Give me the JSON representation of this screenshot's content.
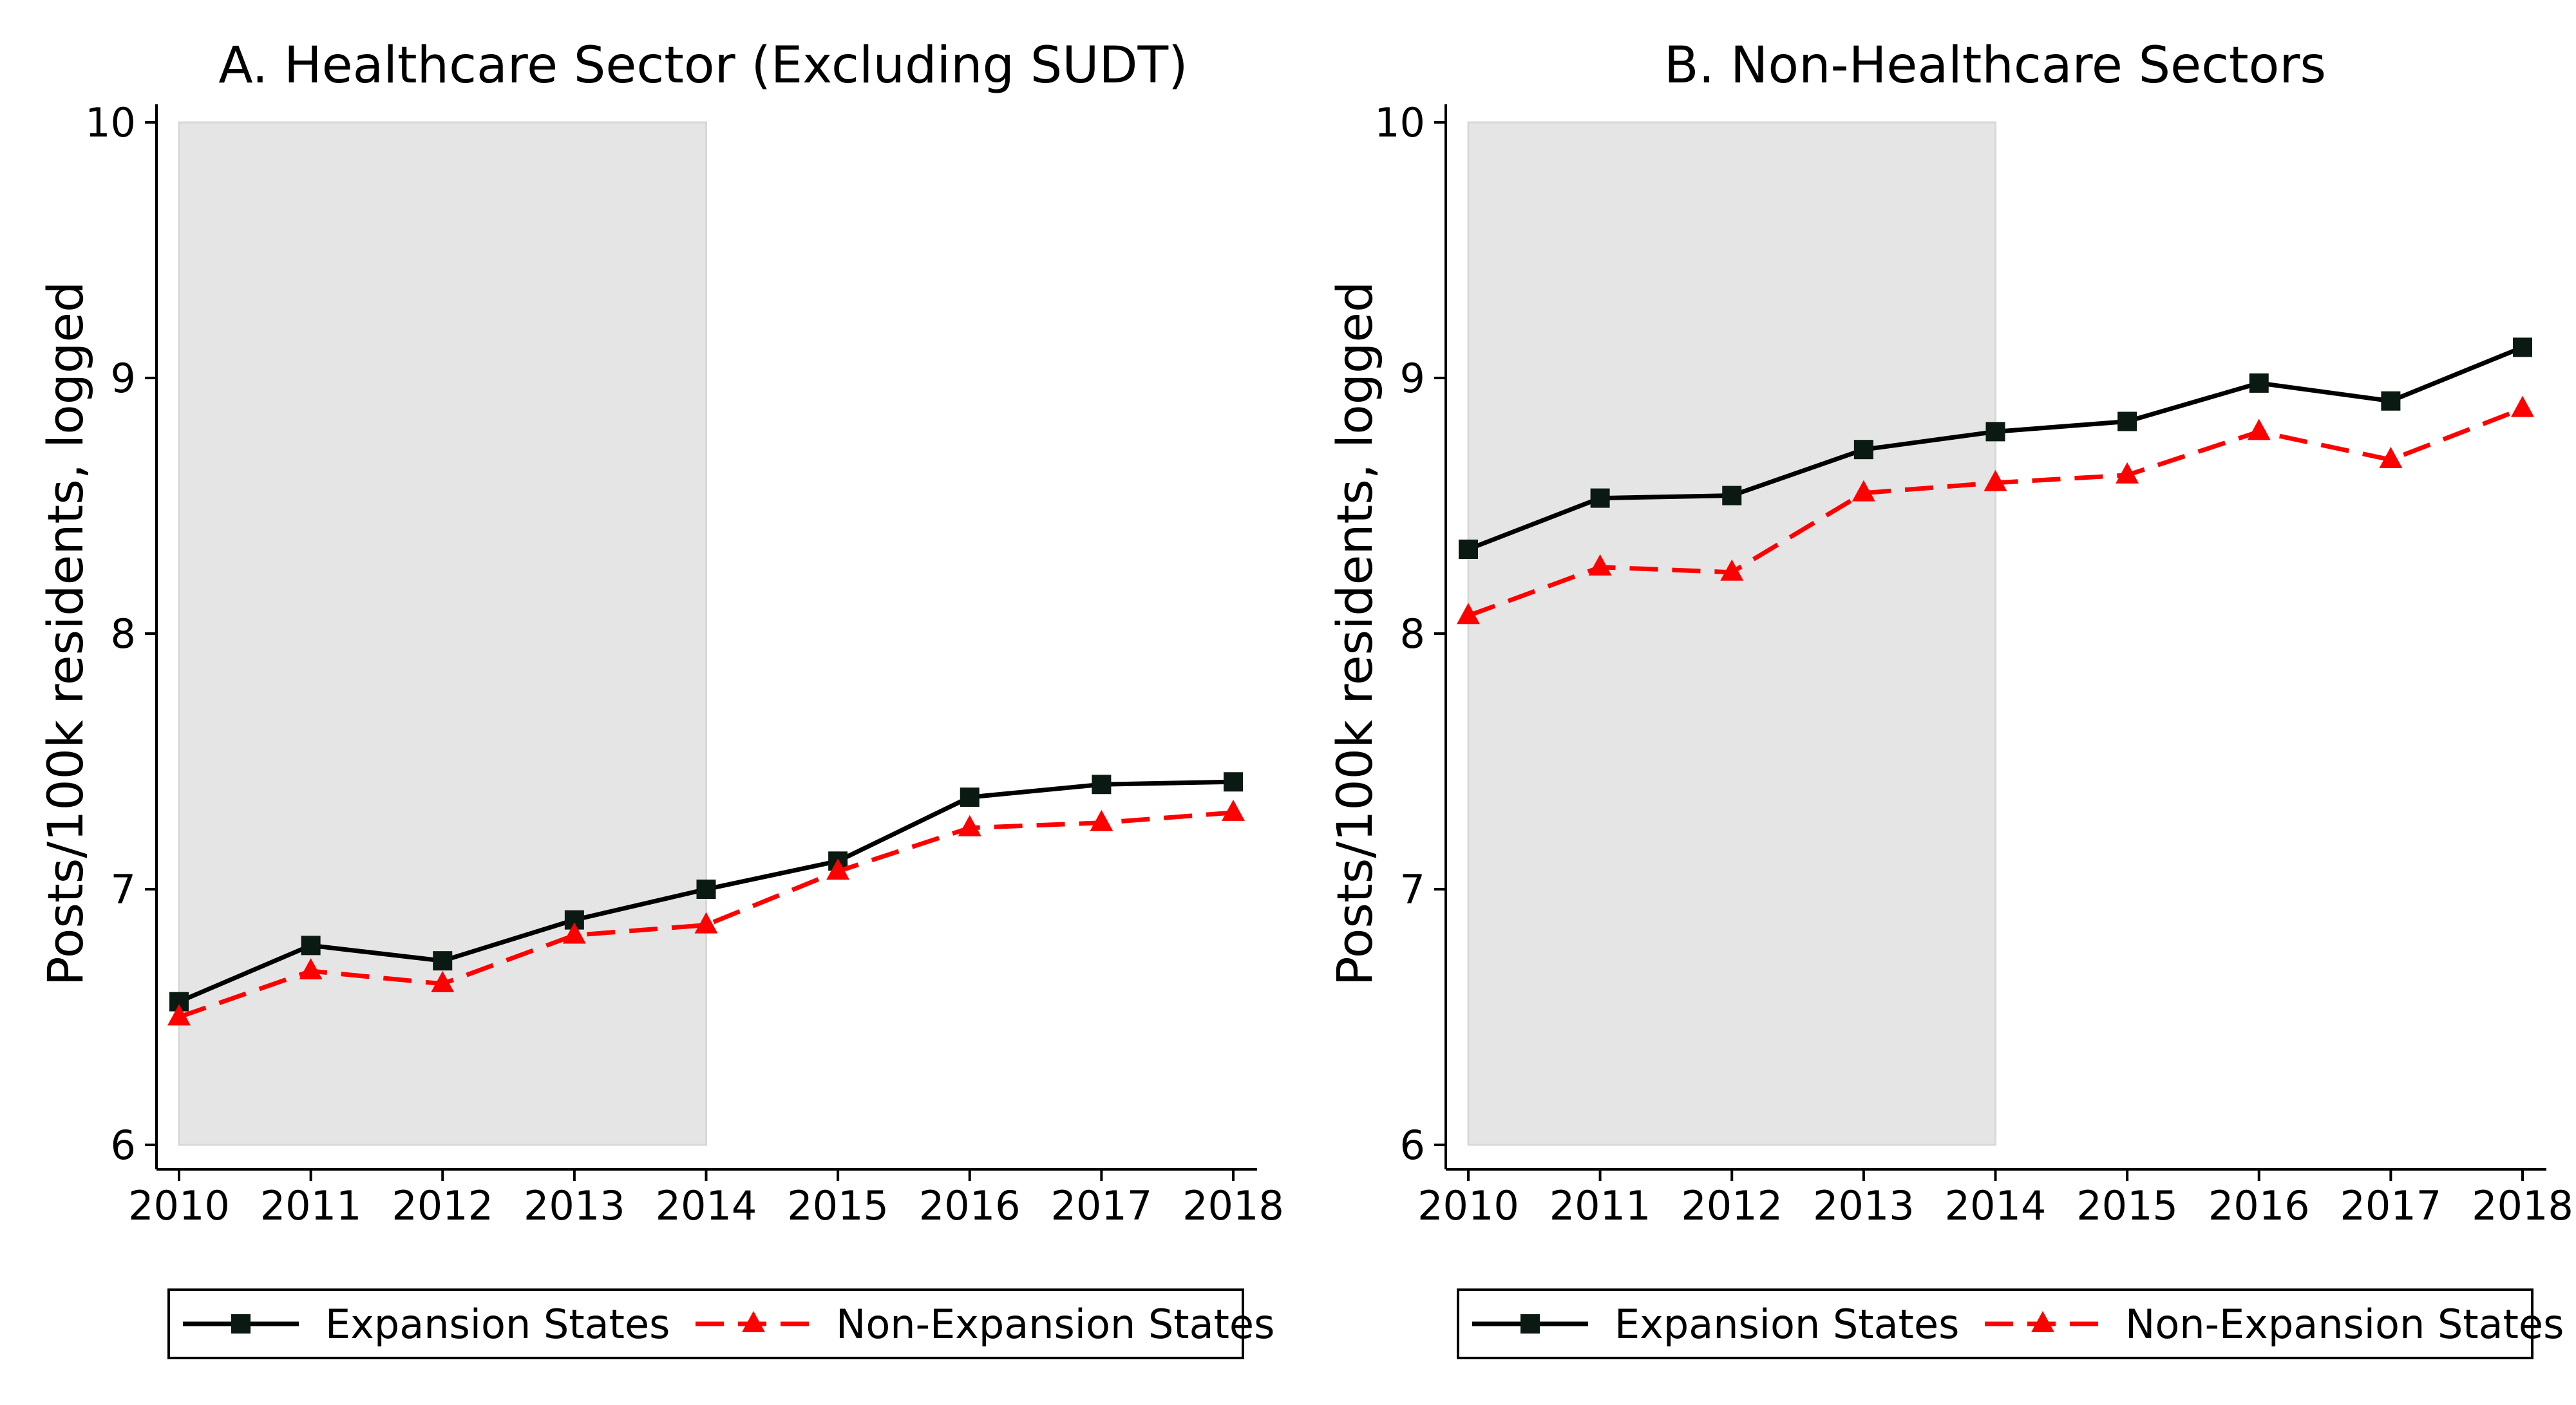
{
  "chart_data": [
    {
      "type": "line",
      "title": "A. Healthcare Sector (Excluding SUDT)",
      "xlabel": "",
      "ylabel": "Posts/100k residents, logged",
      "x": [
        2010,
        2011,
        2012,
        2013,
        2014,
        2015,
        2016,
        2017,
        2018
      ],
      "xticks": [
        "2010",
        "2011",
        "2012",
        "2013",
        "2014",
        "2015",
        "2016",
        "2017",
        "2018"
      ],
      "ylim": [
        6,
        10
      ],
      "yticks": [
        "6",
        "7",
        "8",
        "9",
        "10"
      ],
      "shaded_region": [
        2010,
        2014
      ],
      "grid": false,
      "legend_position": "bottom",
      "series": [
        {
          "name": "Expansion States",
          "values": [
            6.56,
            6.78,
            6.72,
            6.88,
            7.0,
            7.11,
            7.36,
            7.41,
            7.42
          ],
          "color": "#000000",
          "marker": "square",
          "dash": "solid"
        },
        {
          "name": "Non-Expansion States",
          "values": [
            6.5,
            6.68,
            6.63,
            6.82,
            6.86,
            7.07,
            7.24,
            7.26,
            7.3
          ],
          "color": "#ff0000",
          "marker": "triangle",
          "dash": "dashed"
        }
      ]
    },
    {
      "type": "line",
      "title": "B. Non-Healthcare Sectors",
      "xlabel": "",
      "ylabel": "Posts/100k residents, logged",
      "x": [
        2010,
        2011,
        2012,
        2013,
        2014,
        2015,
        2016,
        2017,
        2018
      ],
      "xticks": [
        "2010",
        "2011",
        "2012",
        "2013",
        "2014",
        "2015",
        "2016",
        "2017",
        "2018"
      ],
      "ylim": [
        6,
        10
      ],
      "yticks": [
        "6",
        "7",
        "8",
        "9",
        "10"
      ],
      "shaded_region": [
        2010,
        2014
      ],
      "grid": false,
      "legend_position": "bottom",
      "series": [
        {
          "name": "Expansion States",
          "values": [
            8.33,
            8.53,
            8.54,
            8.72,
            8.79,
            8.83,
            8.98,
            8.91,
            9.12
          ],
          "color": "#000000",
          "marker": "square",
          "dash": "solid"
        },
        {
          "name": "Non-Expansion States",
          "values": [
            8.07,
            8.26,
            8.24,
            8.55,
            8.59,
            8.62,
            8.79,
            8.68,
            8.88
          ],
          "color": "#ff0000",
          "marker": "triangle",
          "dash": "dashed"
        }
      ]
    }
  ],
  "colors": {
    "shade": "#e5e5e5",
    "axis": "#000000"
  }
}
